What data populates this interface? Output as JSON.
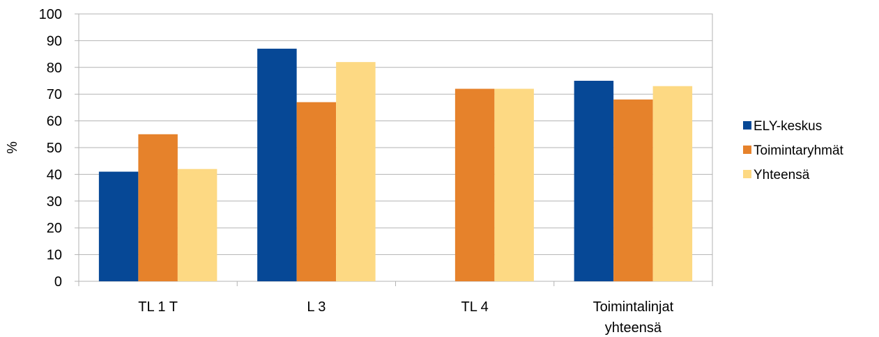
{
  "chart_data": {
    "type": "bar",
    "title": "",
    "xlabel": "",
    "ylabel": "%",
    "ylim": [
      0,
      100
    ],
    "yticks": [
      0,
      10,
      20,
      30,
      40,
      50,
      60,
      70,
      80,
      90,
      100
    ],
    "grid": true,
    "legend_position": "right",
    "categories": [
      [
        "TL 1 T"
      ],
      [
        "L 3"
      ],
      [
        "TL 4"
      ],
      [
        "Toimintalinjat",
        "yhteensä"
      ]
    ],
    "series": [
      {
        "name": "ELY-keskus",
        "color": "#064896",
        "values": [
          41,
          87,
          null,
          75
        ]
      },
      {
        "name": "Toimintaryhmät",
        "color": "#e6822b",
        "values": [
          55,
          67,
          72,
          68
        ]
      },
      {
        "name": "Yhteensä",
        "color": "#fdd983",
        "values": [
          42,
          82,
          72,
          73
        ]
      }
    ]
  }
}
